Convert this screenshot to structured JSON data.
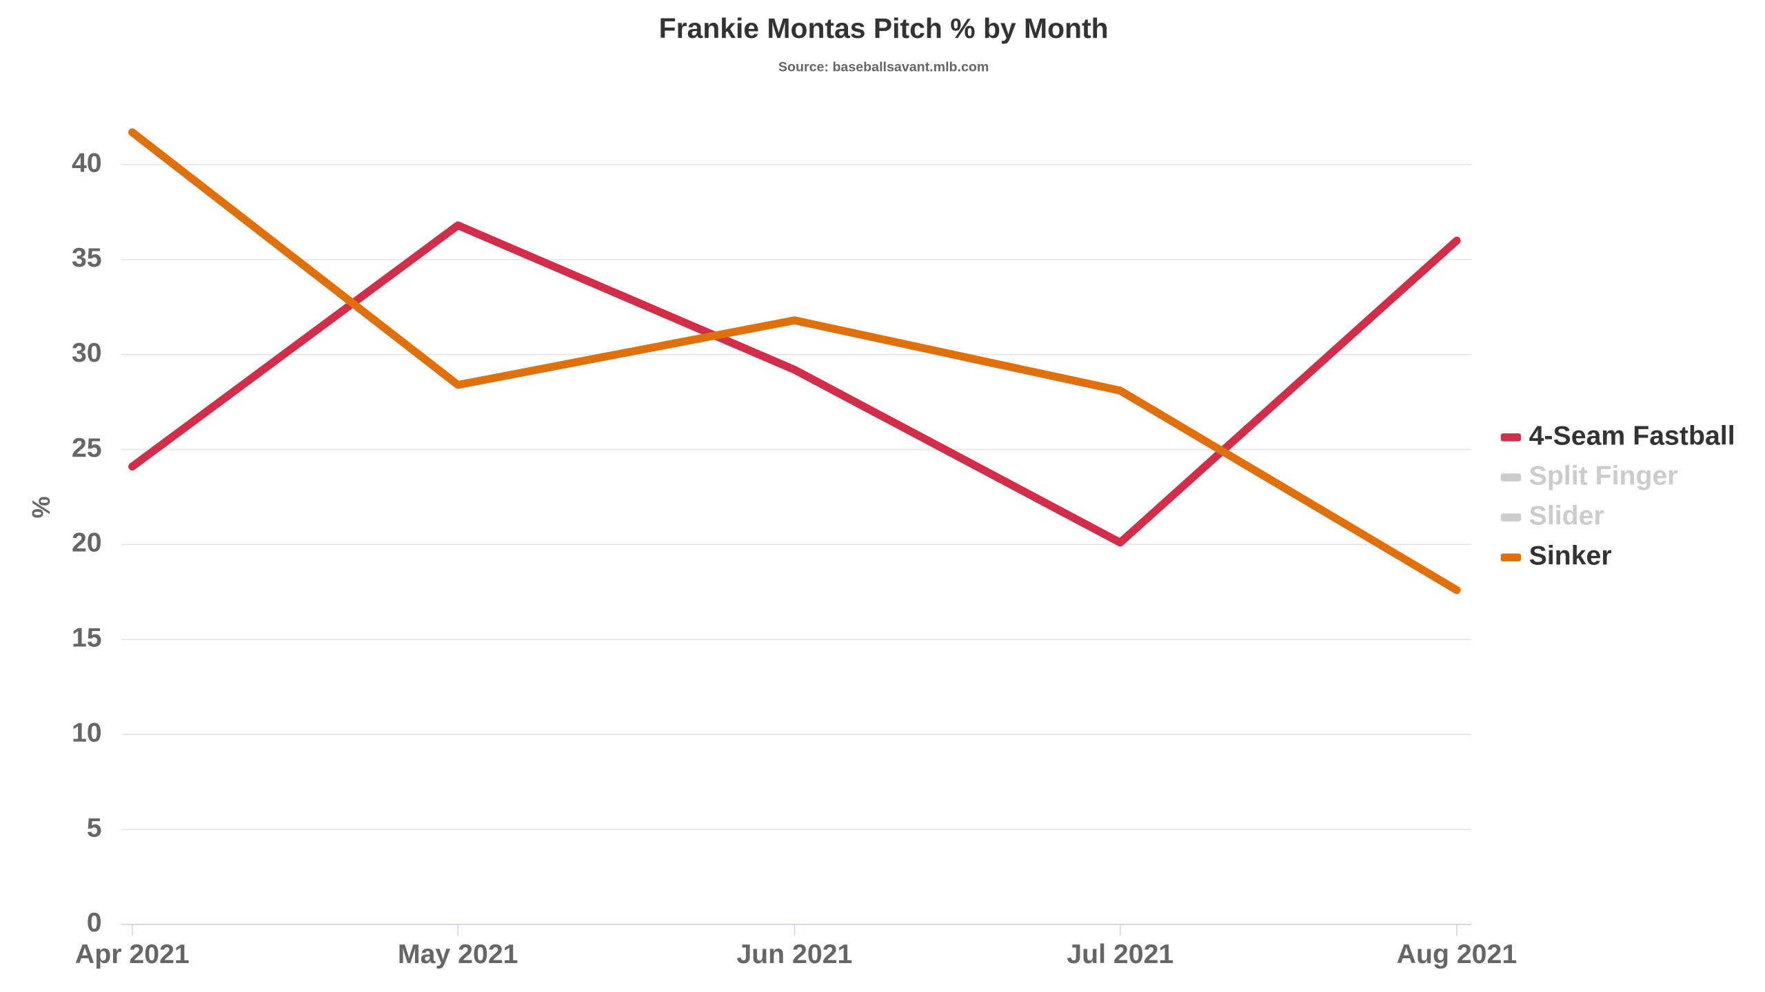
{
  "chart_data": {
    "type": "line",
    "title": "Frankie Montas Pitch % by Month",
    "subtitle": "Source: baseballsavant.mlb.com",
    "y_label": "%",
    "x": [
      "2021-04",
      "2021-05",
      "2021-06",
      "2021-07",
      "2021-08"
    ],
    "xlim": [
      "2021-04",
      "2021-08"
    ],
    "xticks": [
      {
        "value": "2021-04",
        "label": "Apr 2021"
      },
      {
        "value": "2021-05",
        "label": "May 2021"
      },
      {
        "value": "2021-06",
        "label": "Jun 2021"
      },
      {
        "value": "2021-07",
        "label": "Jul 2021"
      },
      {
        "value": "2021-08",
        "label": "Aug 2021"
      }
    ],
    "ylim": [
      0,
      42
    ],
    "yticks": [
      0,
      5,
      10,
      15,
      20,
      25,
      30,
      35,
      40
    ],
    "grid": true,
    "legend": "right",
    "series": [
      {
        "name": "4-Seam Fastball",
        "color": "#d22d49",
        "visible": true,
        "values": [
          24.1,
          36.8,
          29.2,
          20.1,
          36.0
        ]
      },
      {
        "name": "Split Finger",
        "color": "#cccccc",
        "visible": false,
        "values": [
          null,
          null,
          null,
          null,
          null
        ]
      },
      {
        "name": "Slider",
        "color": "#cccccc",
        "visible": false,
        "values": [
          null,
          null,
          null,
          null,
          null
        ]
      },
      {
        "name": "Sinker",
        "color": "#e0700c",
        "visible": true,
        "values": [
          41.7,
          28.4,
          31.8,
          28.1,
          17.6
        ]
      }
    ]
  }
}
